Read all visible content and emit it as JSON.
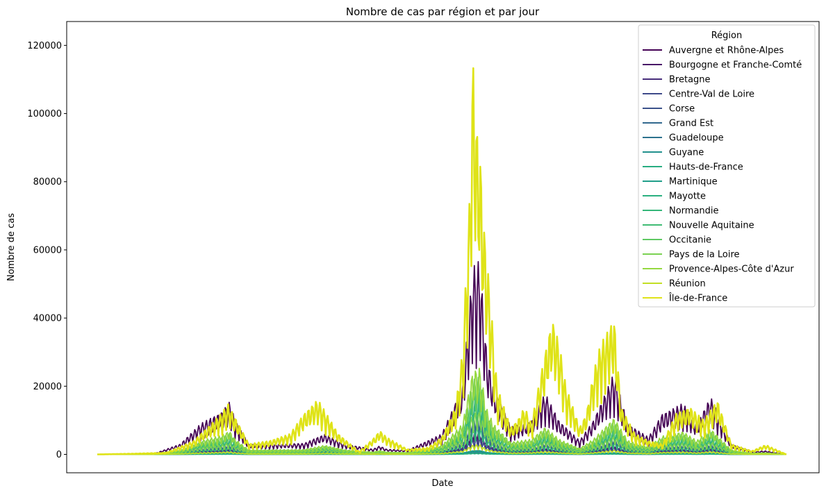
{
  "chart_data": {
    "type": "line",
    "title": "Nombre de cas par région et par jour",
    "xlabel": "Date",
    "ylabel": "Nombre de cas",
    "ylim": [
      -5400,
      127000
    ],
    "yticks": [
      0,
      20000,
      40000,
      60000,
      80000,
      100000,
      120000
    ],
    "ytick_labels": [
      "0",
      "20000",
      "40000",
      "60000",
      "80000",
      "100000",
      "120000"
    ],
    "x_tick_labels_visible": false,
    "grid": false,
    "legend": {
      "title": "Région",
      "placement": "top-right"
    },
    "x_domain": [
      0,
      100
    ],
    "series_note_x": "x values are positions along the (unlabelled) date axis, 0 = first day, 100 = last day",
    "series": [
      {
        "name": "Auvergne et Rhône-Alpes",
        "color": "#440154",
        "peak_scale": 0.45,
        "x": [
          0,
          8,
          12,
          15,
          18,
          19.2,
          20,
          22,
          30,
          33,
          36,
          40,
          41,
          42,
          45,
          50,
          53,
          54.5,
          55.5,
          56.5,
          57.5,
          60,
          63,
          65,
          67,
          70,
          72,
          75,
          77,
          80,
          82,
          85,
          87,
          89,
          92,
          95,
          97,
          100
        ],
        "y": [
          0,
          0,
          3000,
          9000,
          12500,
          15500,
          10000,
          3000,
          3200,
          6000,
          3000,
          1500,
          2500,
          1500,
          1200,
          6000,
          20000,
          55000,
          57000,
          30000,
          20000,
          8000,
          10000,
          18000,
          10000,
          4000,
          10000,
          24000,
          9000,
          5000,
          12000,
          15000,
          9000,
          17000,
          3000,
          800,
          1000,
          0
        ]
      },
      {
        "name": "Bourgogne et Franche-Comté",
        "color": "#481567",
        "peak_scale": 0.12,
        "x": [
          0,
          100
        ],
        "y": [
          0,
          0
        ]
      },
      {
        "name": "Bretagne",
        "color": "#472d7b",
        "peak_scale": 0.1,
        "x": [
          0,
          100
        ],
        "y": [
          0,
          0
        ]
      },
      {
        "name": "Centre-Val de Loire",
        "color": "#3e4989",
        "peak_scale": 0.08,
        "x": [
          0,
          100
        ],
        "y": [
          0,
          0
        ]
      },
      {
        "name": "Corse",
        "color": "#3b528b",
        "peak_scale": 0.01,
        "x": [
          0,
          100
        ],
        "y": [
          0,
          0
        ]
      },
      {
        "name": "Grand Est",
        "color": "#31688e",
        "peak_scale": 0.2,
        "x": [
          0,
          100
        ],
        "y": [
          0,
          0
        ]
      },
      {
        "name": "Guadeloupe",
        "color": "#2c728e",
        "peak_scale": 0.02,
        "x": [
          0,
          100
        ],
        "y": [
          0,
          0
        ]
      },
      {
        "name": "Guyane",
        "color": "#21908d",
        "peak_scale": 0.015,
        "x": [
          0,
          100
        ],
        "y": [
          0,
          0
        ]
      },
      {
        "name": "Hauts-de-France",
        "color": "#27ad81",
        "peak_scale": 0.3,
        "x": [
          0,
          100
        ],
        "y": [
          0,
          0
        ]
      },
      {
        "name": "Martinique",
        "color": "#1f9e89",
        "peak_scale": 0.02,
        "x": [
          0,
          100
        ],
        "y": [
          0,
          0
        ]
      },
      {
        "name": "Mayotte",
        "color": "#2ab07f",
        "peak_scale": 0.005,
        "x": [
          0,
          100
        ],
        "y": [
          0,
          0
        ]
      },
      {
        "name": "Normandie",
        "color": "#35b779",
        "peak_scale": 0.14,
        "x": [
          0,
          100
        ],
        "y": [
          0,
          0
        ]
      },
      {
        "name": "Nouvelle Aquitaine",
        "color": "#3fbc73",
        "peak_scale": 0.34,
        "x": [
          0,
          100
        ],
        "y": [
          0,
          0
        ]
      },
      {
        "name": "Occitanie",
        "color": "#5ec962",
        "peak_scale": 0.4,
        "x": [
          0,
          100
        ],
        "y": [
          0,
          0
        ]
      },
      {
        "name": "Pays de la Loire",
        "color": "#7ad151",
        "peak_scale": 0.22,
        "x": [
          0,
          100
        ],
        "y": [
          0,
          0
        ]
      },
      {
        "name": "Provence-Alpes-Côte d'Azur",
        "color": "#95d840",
        "peak_scale": 0.45,
        "x": [
          0,
          100
        ],
        "y": [
          0,
          0
        ]
      },
      {
        "name": "Réunion",
        "color": "#c2df23",
        "peak_scale": 0.05,
        "x": [
          0,
          100
        ],
        "y": [
          0,
          0
        ]
      },
      {
        "name": "Île-de-France",
        "color": "#dfe318",
        "x": [
          0,
          5,
          10,
          14,
          18,
          19,
          20,
          22,
          25,
          28,
          30,
          32,
          35,
          38,
          40,
          41,
          42,
          45,
          48,
          50,
          52,
          53,
          54,
          54.5,
          55,
          55.5,
          56,
          57,
          58,
          60,
          61,
          62,
          63,
          65,
          66,
          67,
          68,
          70,
          71,
          72,
          73,
          75,
          76,
          78,
          80,
          82,
          84,
          86,
          88,
          90,
          92,
          95,
          97,
          100
        ],
        "y": [
          0,
          200,
          500,
          4000,
          12000,
          14800,
          11000,
          3000,
          4000,
          6000,
          12000,
          16200,
          6000,
          800,
          4500,
          7000,
          5000,
          1500,
          2000,
          5000,
          14000,
          30000,
          74000,
          118000,
          98000,
          91000,
          70000,
          47000,
          20000,
          8000,
          10000,
          14000,
          9000,
          30000,
          40000,
          33000,
          20000,
          8000,
          12000,
          24000,
          32000,
          40000,
          14000,
          6000,
          4000,
          3000,
          12000,
          14000,
          10000,
          16000,
          3000,
          1000,
          2800,
          0
        ]
      }
    ]
  }
}
